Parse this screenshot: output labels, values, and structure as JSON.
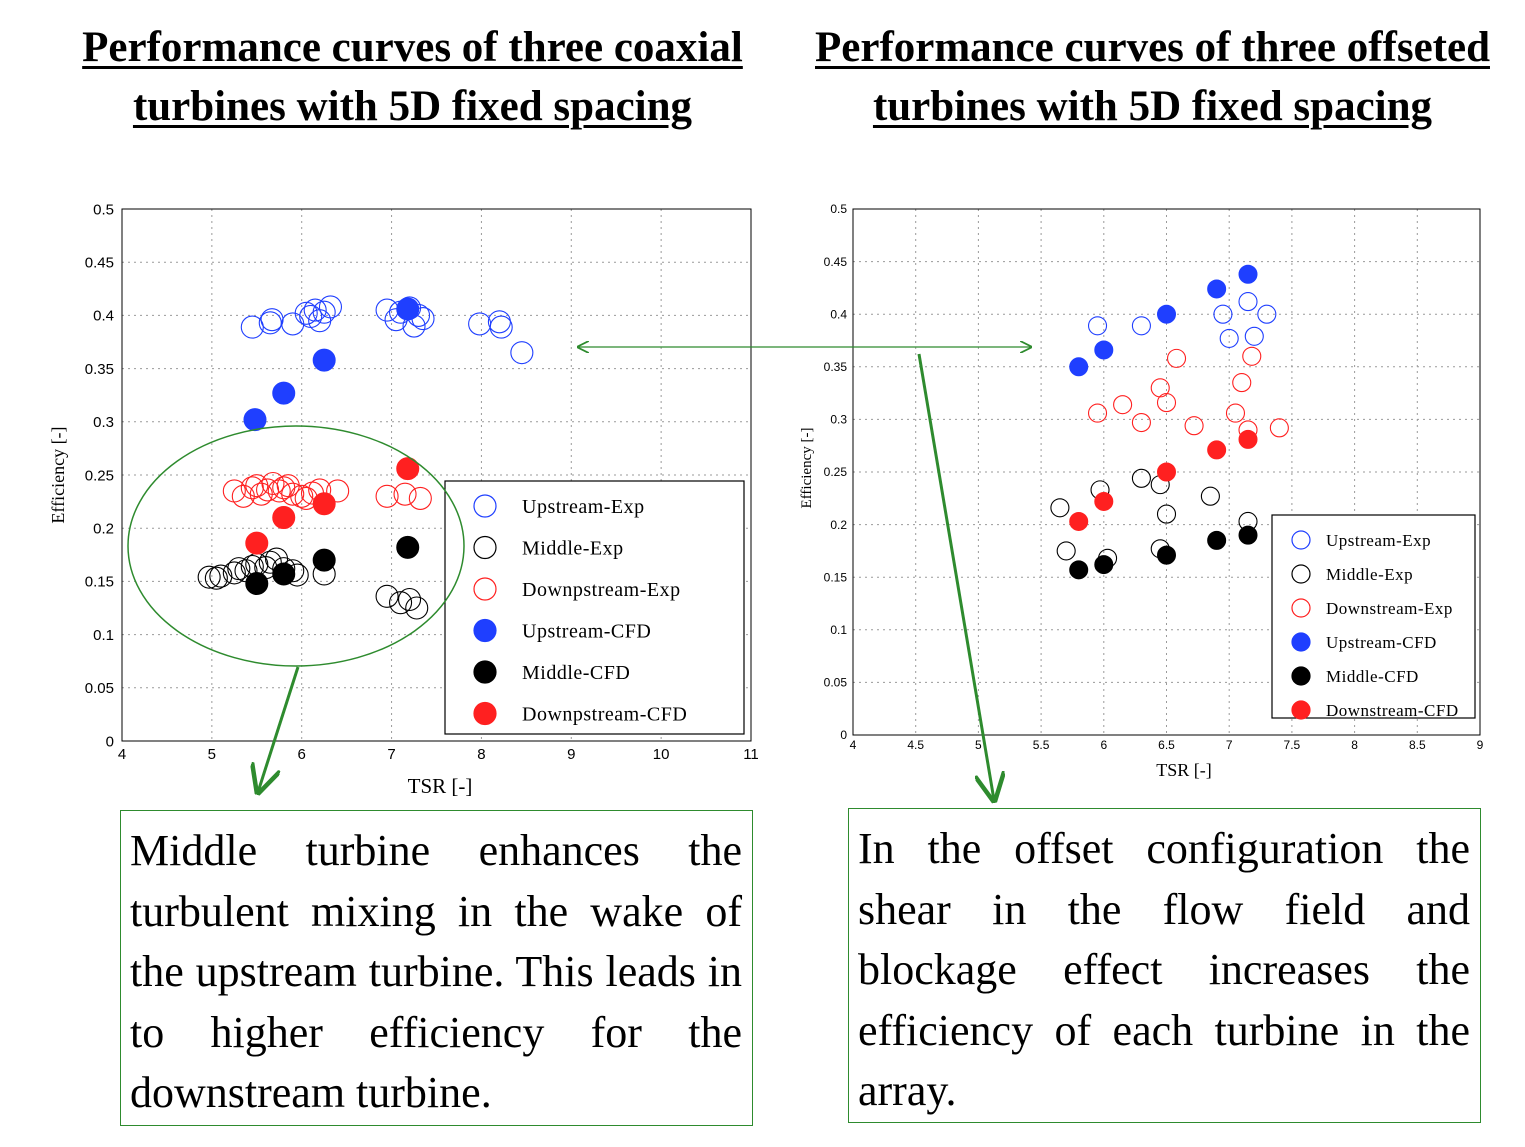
{
  "titles": {
    "left": "Performance curves of three coaxial turbines with 5D fixed spacing",
    "right": "Performance curves of three offseted turbines with 5D fixed spacing"
  },
  "notes": {
    "left": "Middle turbine enhances the turbulent mixing in the wake of the upstream turbine. This leads in to higher efficiency for the downstream turbine.",
    "right": "In the offset configuration the shear in the flow field and blockage effect increases the efficiency of each turbine in the array."
  },
  "colors": {
    "upstream": "#1f3fff",
    "middle": "#000000",
    "downstream": "#ff2020",
    "annotation": "#2e8b2e"
  },
  "chart_data": [
    {
      "type": "scatter",
      "xlabel": "TSR [-]",
      "ylabel": "Efficiency [-]",
      "xlim": [
        4,
        11
      ],
      "ylim": [
        0,
        0.5
      ],
      "xticks": [
        "4",
        "5",
        "6",
        "7",
        "8",
        "9",
        "10",
        "11"
      ],
      "yticks": [
        "0",
        "0.05",
        "0.1",
        "0.15",
        "0.2",
        "0.25",
        "0.3",
        "0.35",
        "0.4",
        "0.45",
        "0.5"
      ],
      "grid": true,
      "legend_position": "bottom-right",
      "series": [
        {
          "name": "Upstream-Exp",
          "fill": false,
          "color": "#1f3fff",
          "points": [
            [
              5.45,
              0.389
            ],
            [
              5.65,
              0.393
            ],
            [
              5.67,
              0.396
            ],
            [
              5.9,
              0.392
            ],
            [
              6.1,
              0.399
            ],
            [
              6.15,
              0.405
            ],
            [
              6.2,
              0.395
            ],
            [
              6.25,
              0.403
            ],
            [
              6.32,
              0.408
            ],
            [
              6.05,
              0.402
            ],
            [
              6.95,
              0.405
            ],
            [
              7.05,
              0.396
            ],
            [
              7.1,
              0.403
            ],
            [
              7.25,
              0.39
            ],
            [
              7.3,
              0.4
            ],
            [
              7.35,
              0.397
            ],
            [
              7.2,
              0.407
            ],
            [
              7.98,
              0.392
            ],
            [
              8.2,
              0.394
            ],
            [
              8.22,
              0.389
            ],
            [
              8.45,
              0.365
            ]
          ]
        },
        {
          "name": "Middle-Exp",
          "fill": false,
          "color": "#000000",
          "points": [
            [
              4.97,
              0.154
            ],
            [
              5.05,
              0.153
            ],
            [
              5.1,
              0.155
            ],
            [
              5.25,
              0.158
            ],
            [
              5.3,
              0.162
            ],
            [
              5.38,
              0.16
            ],
            [
              5.45,
              0.164
            ],
            [
              5.5,
              0.166
            ],
            [
              5.6,
              0.163
            ],
            [
              5.65,
              0.168
            ],
            [
              5.72,
              0.171
            ],
            [
              5.8,
              0.162
            ],
            [
              5.9,
              0.16
            ],
            [
              5.95,
              0.156
            ],
            [
              6.25,
              0.157
            ],
            [
              6.95,
              0.136
            ],
            [
              7.1,
              0.13
            ],
            [
              7.2,
              0.133
            ],
            [
              7.28,
              0.125
            ]
          ]
        },
        {
          "name": "Downpstream-Exp",
          "fill": false,
          "color": "#ff2020",
          "points": [
            [
              5.25,
              0.235
            ],
            [
              5.35,
              0.23
            ],
            [
              5.45,
              0.238
            ],
            [
              5.5,
              0.24
            ],
            [
              5.55,
              0.232
            ],
            [
              5.62,
              0.236
            ],
            [
              5.68,
              0.242
            ],
            [
              5.75,
              0.235
            ],
            [
              5.8,
              0.238
            ],
            [
              5.85,
              0.24
            ],
            [
              5.9,
              0.232
            ],
            [
              6.0,
              0.23
            ],
            [
              6.05,
              0.228
            ],
            [
              6.12,
              0.233
            ],
            [
              6.2,
              0.236
            ],
            [
              6.4,
              0.235
            ],
            [
              6.95,
              0.23
            ],
            [
              7.15,
              0.232
            ],
            [
              7.32,
              0.228
            ]
          ]
        },
        {
          "name": "Upstream-CFD",
          "fill": true,
          "color": "#1f3fff",
          "points": [
            [
              5.48,
              0.302
            ],
            [
              5.8,
              0.327
            ],
            [
              6.25,
              0.358
            ],
            [
              7.18,
              0.406
            ]
          ]
        },
        {
          "name": "Middle-CFD",
          "fill": true,
          "color": "#000000",
          "points": [
            [
              5.5,
              0.148
            ],
            [
              5.8,
              0.157
            ],
            [
              6.25,
              0.17
            ],
            [
              7.18,
              0.182
            ]
          ]
        },
        {
          "name": "Downpstream-CFD",
          "fill": true,
          "color": "#ff2020",
          "points": [
            [
              5.5,
              0.186
            ],
            [
              5.8,
              0.21
            ],
            [
              6.25,
              0.223
            ],
            [
              7.18,
              0.256
            ]
          ]
        }
      ]
    },
    {
      "type": "scatter",
      "xlabel": "TSR [-]",
      "ylabel": "Efficiency [-]",
      "xlim": [
        4,
        9
      ],
      "ylim": [
        0,
        0.5
      ],
      "xticks": [
        "4",
        "4.5",
        "5",
        "5.5",
        "6",
        "6.5",
        "7",
        "7.5",
        "8",
        "8.5",
        "9"
      ],
      "yticks": [
        "0",
        "0.05",
        "0.1",
        "0.15",
        "0.2",
        "0.25",
        "0.3",
        "0.35",
        "0.4",
        "0.45",
        "0.5"
      ],
      "grid": true,
      "legend_position": "bottom-right",
      "series": [
        {
          "name": "Upstream-Exp",
          "fill": false,
          "color": "#1f3fff",
          "points": [
            [
              5.95,
              0.389
            ],
            [
              6.3,
              0.389
            ],
            [
              6.95,
              0.4
            ],
            [
              7.15,
              0.412
            ],
            [
              7.3,
              0.4
            ],
            [
              7.2,
              0.379
            ],
            [
              7.0,
              0.377
            ]
          ]
        },
        {
          "name": "Middle-Exp",
          "fill": false,
          "color": "#000000",
          "points": [
            [
              5.65,
              0.216
            ],
            [
              5.7,
              0.175
            ],
            [
              5.97,
              0.233
            ],
            [
              6.03,
              0.168
            ],
            [
              6.3,
              0.244
            ],
            [
              6.45,
              0.238
            ],
            [
              6.5,
              0.21
            ],
            [
              6.45,
              0.177
            ],
            [
              6.85,
              0.227
            ],
            [
              7.15,
              0.203
            ]
          ]
        },
        {
          "name": "Downstream-Exp",
          "fill": false,
          "color": "#ff2020",
          "points": [
            [
              5.95,
              0.306
            ],
            [
              6.15,
              0.314
            ],
            [
              6.3,
              0.297
            ],
            [
              6.45,
              0.33
            ],
            [
              6.5,
              0.316
            ],
            [
              6.58,
              0.358
            ],
            [
              6.72,
              0.294
            ],
            [
              7.05,
              0.306
            ],
            [
              7.1,
              0.335
            ],
            [
              7.15,
              0.29
            ],
            [
              7.18,
              0.36
            ],
            [
              7.4,
              0.292
            ]
          ]
        },
        {
          "name": "Upstream-CFD",
          "fill": true,
          "color": "#1f3fff",
          "points": [
            [
              5.8,
              0.35
            ],
            [
              6.0,
              0.366
            ],
            [
              6.5,
              0.4
            ],
            [
              6.9,
              0.424
            ],
            [
              7.15,
              0.438
            ]
          ]
        },
        {
          "name": "Middle-CFD",
          "fill": true,
          "color": "#000000",
          "points": [
            [
              5.8,
              0.157
            ],
            [
              6.0,
              0.162
            ],
            [
              6.5,
              0.171
            ],
            [
              6.9,
              0.185
            ],
            [
              7.15,
              0.19
            ]
          ]
        },
        {
          "name": "Downstream-CFD",
          "fill": true,
          "color": "#ff2020",
          "points": [
            [
              5.8,
              0.203
            ],
            [
              6.0,
              0.222
            ],
            [
              6.5,
              0.25
            ],
            [
              6.9,
              0.271
            ],
            [
              7.15,
              0.281
            ]
          ]
        }
      ]
    }
  ]
}
